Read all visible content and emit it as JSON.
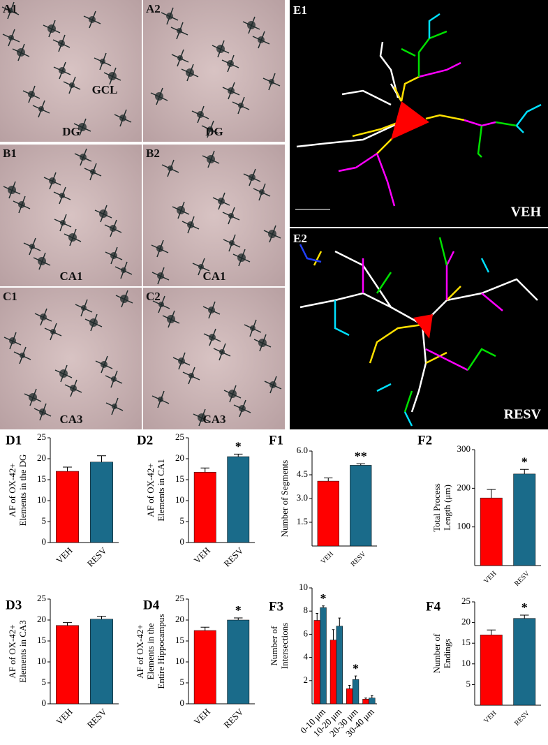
{
  "images": [
    {
      "label": "A1",
      "region": "DG",
      "annotation": "GCL"
    },
    {
      "label": "A2",
      "region": "DG"
    },
    {
      "label": "B1",
      "region": "CA1"
    },
    {
      "label": "B2",
      "region": "CA1"
    },
    {
      "label": "C1",
      "region": "CA3"
    },
    {
      "label": "C2",
      "region": "CA3"
    }
  ],
  "tracings": [
    {
      "label": "E1",
      "group": "VEH"
    },
    {
      "label": "E2",
      "group": "RESV"
    }
  ],
  "chart_data": [
    {
      "type": "bar",
      "label": "D1",
      "ylabel": [
        "AF of OX-42+",
        "Elements in the DG"
      ],
      "categories": [
        "VEH",
        "RESV"
      ],
      "values": [
        17,
        19.2
      ],
      "errors": [
        1,
        1.5
      ],
      "colors": [
        "#ff0000",
        "#1a6b8a"
      ],
      "significance": [
        null,
        null
      ],
      "ylim": [
        0,
        25
      ],
      "yticks": [
        0,
        5,
        10,
        15,
        20,
        25
      ]
    },
    {
      "type": "bar",
      "label": "D2",
      "ylabel": [
        "AF of OX-42+",
        "Elements in CA1"
      ],
      "categories": [
        "VEH",
        "RESV"
      ],
      "values": [
        16.8,
        20.5
      ],
      "errors": [
        1,
        0.6
      ],
      "colors": [
        "#ff0000",
        "#1a6b8a"
      ],
      "significance": [
        null,
        "*"
      ],
      "ylim": [
        0,
        25
      ],
      "yticks": [
        0,
        5,
        10,
        15,
        20,
        25
      ]
    },
    {
      "type": "bar",
      "label": "F1",
      "ylabel": [
        "Number of Segments"
      ],
      "categories": [
        "VEH",
        "RESV"
      ],
      "values": [
        4.1,
        5.1
      ],
      "errors": [
        0.2,
        0.1
      ],
      "colors": [
        "#ff0000",
        "#1a6b8a"
      ],
      "significance": [
        null,
        "**"
      ],
      "ylim": [
        0,
        6
      ],
      "yticks": [
        1.5,
        {
          "value": 3,
          "label": "3.0"
        },
        4.5,
        {
          "value": 6,
          "label": "6.0"
        }
      ]
    },
    {
      "type": "bar",
      "label": "F2",
      "ylabel": [
        "Total Process",
        "Length (μm)"
      ],
      "categories": [
        "VEH",
        "RESV"
      ],
      "values": [
        175,
        237
      ],
      "errors": [
        22,
        12
      ],
      "colors": [
        "#ff0000",
        "#1a6b8a"
      ],
      "significance": [
        null,
        "*"
      ],
      "ylim": [
        0,
        300
      ],
      "yticks": [
        100,
        200,
        300
      ]
    },
    {
      "type": "bar",
      "label": "D3",
      "ylabel": [
        "AF of OX-42+",
        "Elements in CA3"
      ],
      "categories": [
        "VEH",
        "RESV"
      ],
      "values": [
        18.7,
        20.2
      ],
      "errors": [
        0.7,
        0.7
      ],
      "colors": [
        "#ff0000",
        "#1a6b8a"
      ],
      "significance": [
        null,
        null
      ],
      "ylim": [
        0,
        25
      ],
      "yticks": [
        0,
        5,
        10,
        15,
        20,
        25
      ]
    },
    {
      "type": "bar",
      "label": "D4",
      "ylabel": [
        "AF of OX-42+",
        "Elements in the",
        "Entire Hippocampus"
      ],
      "categories": [
        "VEH",
        "RESV"
      ],
      "values": [
        17.5,
        20
      ],
      "errors": [
        0.8,
        0.5
      ],
      "colors": [
        "#ff0000",
        "#1a6b8a"
      ],
      "significance": [
        null,
        "*"
      ],
      "ylim": [
        0,
        25
      ],
      "yticks": [
        0,
        5,
        10,
        15,
        20,
        25
      ]
    },
    {
      "type": "grouped-bar",
      "label": "F3",
      "ylabel": [
        "Number of",
        "Intersections"
      ],
      "categories": [
        "0-10 μm",
        "10-20 μm",
        "20-30 μm",
        "30-40 μm"
      ],
      "series": [
        {
          "color": "#ff0000",
          "values": [
            7.2,
            5.5,
            1.3,
            0.4
          ],
          "errors": [
            0.6,
            0.9,
            0.3,
            0.1
          ],
          "significance": [
            null,
            null,
            null,
            null
          ]
        },
        {
          "color": "#1a6b8a",
          "values": [
            8.3,
            6.7,
            2.1,
            0.5
          ],
          "errors": [
            0.15,
            0.7,
            0.3,
            0.2
          ],
          "significance": [
            "*",
            null,
            "*",
            null
          ]
        }
      ],
      "ylim": [
        0,
        10
      ],
      "yticks": [
        2,
        4,
        6,
        8,
        10
      ]
    },
    {
      "type": "bar",
      "label": "F4",
      "ylabel": [
        "Number of",
        "Endings"
      ],
      "categories": [
        "VEH",
        "RESV"
      ],
      "values": [
        17,
        21
      ],
      "errors": [
        1.2,
        0.8
      ],
      "colors": [
        "#ff0000",
        "#1a6b8a"
      ],
      "significance": [
        null,
        "*"
      ],
      "ylim": [
        0,
        25
      ],
      "yticks": [
        5,
        10,
        15,
        20,
        25
      ]
    }
  ]
}
